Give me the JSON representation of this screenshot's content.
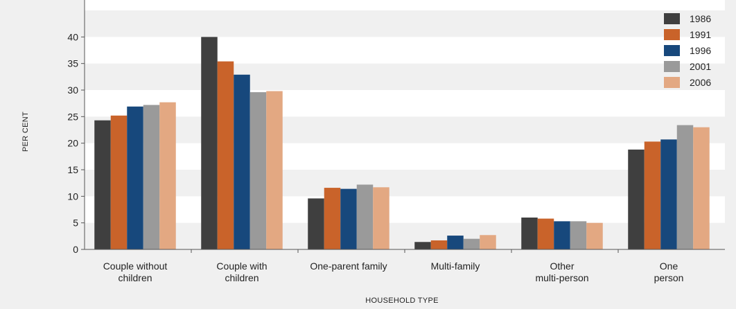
{
  "chart_data": {
    "type": "bar",
    "xlabel": "HOUSEHOLD TYPE",
    "ylabel": "PER CENT",
    "ylim": [
      0,
      45
    ],
    "yticks": [
      0,
      5,
      10,
      15,
      20,
      25,
      30,
      35,
      40
    ],
    "categories": [
      [
        "Couple without",
        "children"
      ],
      [
        "Couple with",
        "children"
      ],
      [
        "One-parent family"
      ],
      [
        "Multi-family"
      ],
      [
        "Other",
        "multi-person"
      ],
      [
        "One",
        "person"
      ]
    ],
    "series": [
      {
        "name": "1986",
        "color": "#3f3f3f",
        "values": [
          24.3,
          40.0,
          9.6,
          1.4,
          6.0,
          18.8
        ]
      },
      {
        "name": "1991",
        "color": "#c9632a",
        "values": [
          25.2,
          35.4,
          11.6,
          1.7,
          5.8,
          20.3
        ]
      },
      {
        "name": "1996",
        "color": "#17487c",
        "values": [
          26.9,
          32.9,
          11.4,
          2.6,
          5.3,
          20.7
        ]
      },
      {
        "name": "2001",
        "color": "#9a9a9a",
        "values": [
          27.2,
          29.6,
          12.2,
          2.0,
          5.3,
          23.4
        ]
      },
      {
        "name": "2006",
        "color": "#e3a882",
        "values": [
          27.7,
          29.8,
          11.7,
          2.7,
          5.0,
          23.0
        ]
      }
    ],
    "grid": "alternating horizontal bands",
    "legend_position": "top-right"
  }
}
